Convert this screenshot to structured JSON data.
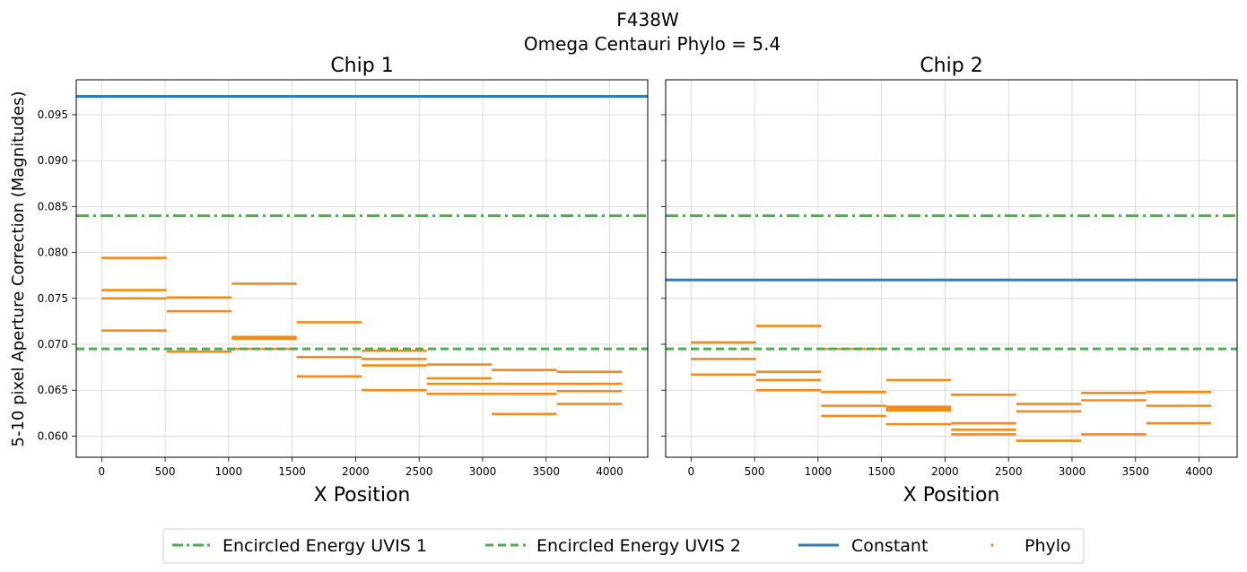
{
  "figure": {
    "title_line1": "F438W",
    "title_line2": "Omega Centauri Phylo = 5.4",
    "ylabel": "5-10 pixel Aperture Correction (Magnitudes)"
  },
  "colors": {
    "ee": "#4cae4c",
    "constant": "#2f7bbf",
    "phylo": "#f28a1c",
    "grid": "#d3d3d3"
  },
  "legend": {
    "items": [
      {
        "label": "Encircled Energy UVIS 1",
        "style": "dashdot"
      },
      {
        "label": "Encircled Energy UVIS 2",
        "style": "dashed"
      },
      {
        "label": "Constant",
        "style": "solid"
      },
      {
        "label": "Phylo",
        "style": "dot"
      }
    ]
  },
  "chart_data": [
    {
      "type": "line",
      "title": "Chip 1",
      "xlabel": "X Position",
      "ylabel": "5-10 pixel Aperture Correction (Magnitudes)",
      "xlim": [
        -200,
        4300
      ],
      "ylim": [
        0.0577,
        0.0988
      ],
      "xticks": [
        0,
        500,
        1000,
        1500,
        2000,
        2500,
        3000,
        3500,
        4000
      ],
      "yticks": [
        0.06,
        0.065,
        0.07,
        0.075,
        0.08,
        0.085,
        0.09,
        0.095
      ],
      "grid": true,
      "encircled_energy_uvis1": 0.084,
      "encircled_energy_uvis2": 0.0695,
      "constant": 0.097,
      "phylo_segments": [
        {
          "x0": 0,
          "x1": 512,
          "values": [
            0.0794,
            0.0759,
            0.075,
            0.0715
          ]
        },
        {
          "x0": 512,
          "x1": 1024,
          "values": [
            0.0751,
            0.0736,
            0.0692
          ]
        },
        {
          "x0": 1024,
          "x1": 1536,
          "values": [
            0.0766,
            0.0708,
            0.0706,
            0.0695
          ]
        },
        {
          "x0": 1536,
          "x1": 2048,
          "values": [
            0.0724,
            0.0686,
            0.0665
          ]
        },
        {
          "x0": 2048,
          "x1": 2560,
          "values": [
            0.0693,
            0.0684,
            0.0677,
            0.065
          ]
        },
        {
          "x0": 2560,
          "x1": 3072,
          "values": [
            0.0678,
            0.0663,
            0.0657,
            0.0646
          ]
        },
        {
          "x0": 3072,
          "x1": 3584,
          "values": [
            0.0672,
            0.0657,
            0.0646,
            0.0624
          ]
        },
        {
          "x0": 3584,
          "x1": 4096,
          "values": [
            0.067,
            0.0657,
            0.0649,
            0.0635
          ]
        }
      ]
    },
    {
      "type": "line",
      "title": "Chip 2",
      "xlabel": "X Position",
      "ylabel": "",
      "xlim": [
        -200,
        4300
      ],
      "ylim": [
        0.0577,
        0.0988
      ],
      "xticks": [
        0,
        500,
        1000,
        1500,
        2000,
        2500,
        3000,
        3500,
        4000
      ],
      "yticks": [
        0.06,
        0.065,
        0.07,
        0.075,
        0.08,
        0.085,
        0.09,
        0.095
      ],
      "grid": true,
      "encircled_energy_uvis1": 0.084,
      "encircled_energy_uvis2": 0.0695,
      "constant": 0.077,
      "phylo_segments": [
        {
          "x0": 0,
          "x1": 512,
          "values": [
            0.0702,
            0.0684,
            0.0667
          ]
        },
        {
          "x0": 512,
          "x1": 1024,
          "values": [
            0.072,
            0.067,
            0.0661,
            0.065
          ]
        },
        {
          "x0": 1024,
          "x1": 1536,
          "values": [
            0.0695,
            0.0648,
            0.0633,
            0.0622
          ]
        },
        {
          "x0": 1536,
          "x1": 2048,
          "values": [
            0.0661,
            0.0632,
            0.063,
            0.0628,
            0.0613
          ]
        },
        {
          "x0": 2048,
          "x1": 2560,
          "values": [
            0.0645,
            0.0614,
            0.0607,
            0.0602
          ]
        },
        {
          "x0": 2560,
          "x1": 3072,
          "values": [
            0.0635,
            0.0627,
            0.0595
          ]
        },
        {
          "x0": 3072,
          "x1": 3584,
          "values": [
            0.0647,
            0.0639,
            0.0602
          ]
        },
        {
          "x0": 3584,
          "x1": 4096,
          "values": [
            0.0648,
            0.0633,
            0.0614
          ]
        }
      ]
    }
  ]
}
